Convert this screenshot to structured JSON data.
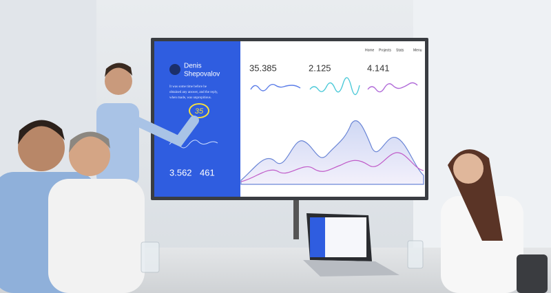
{
  "screen": {
    "nav": [
      "Home",
      "Projects",
      "Stats",
      "Menu"
    ],
    "sidebar": {
      "name_lines": [
        "Denis",
        "Shepovalov"
      ],
      "quote_lines": [
        "It was some time before he",
        "obtained any answer, and the reply,",
        "when made, was unpropitious."
      ],
      "annotation": "35",
      "stats": [
        "3.562",
        "461"
      ]
    },
    "metrics": [
      "35.385",
      "2.125",
      "4.141"
    ]
  }
}
